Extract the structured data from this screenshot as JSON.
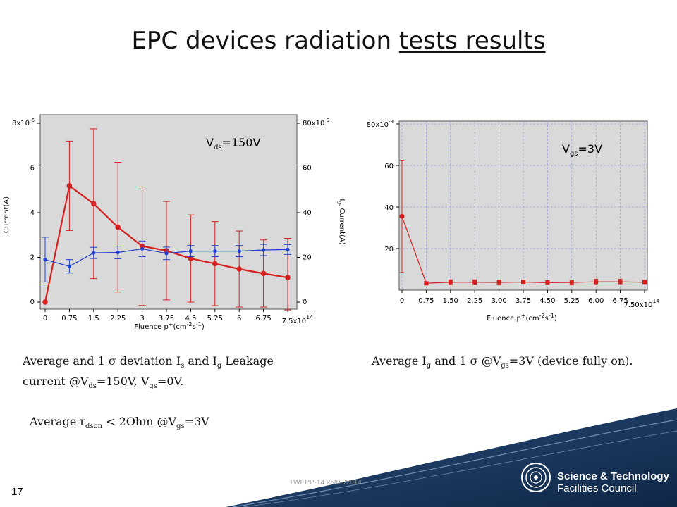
{
  "title": {
    "plain": "EPC devices radiation ",
    "underlined": "tests results"
  },
  "chart_data": [
    {
      "type": "line",
      "annotation": {
        "main": "V",
        "sub": "ds",
        "rest": "=150V"
      },
      "xlabel": "Fluence p+(cm-2s-1)",
      "x_tick_labels": [
        "0",
        "0.75",
        "1.5",
        "2.25",
        "3",
        "3.75",
        "4.5",
        "5.25",
        "6",
        "6.75",
        "7.5x10"
      ],
      "x_exponent": "14",
      "x": [
        0,
        0.75,
        1.5,
        2.25,
        3,
        3.75,
        4.5,
        5.25,
        6,
        6.75,
        7.5
      ],
      "y_left_label": "Current(A)",
      "y_left_tick_labels": [
        "0",
        "2",
        "4",
        "6",
        "8x10"
      ],
      "y_left_exponent": "-6",
      "ylim_left": [
        0,
        8e-06
      ],
      "y_right_label": "Current(A)",
      "y_right_label_sub": "gs",
      "y_right_label_prefix": "I",
      "y_right_tick_labels": [
        "0",
        "20",
        "40",
        "60",
        "80x10"
      ],
      "y_right_exponent": "-9",
      "ylim_right": [
        0,
        8e-08
      ],
      "series": [
        {
          "axis": "left",
          "color": "#d62020",
          "values": [
            0,
            5.2,
            4.4,
            3.35,
            2.5,
            2.3,
            1.95,
            1.72,
            1.48,
            1.28,
            1.1
          ],
          "err": [
            0,
            2.0,
            3.35,
            2.9,
            2.65,
            2.2,
            1.95,
            1.88,
            1.7,
            1.5,
            1.75
          ]
        },
        {
          "axis": "left",
          "color": "#2040d0",
          "values": [
            1.9,
            1.6,
            2.2,
            2.22,
            2.38,
            2.18,
            2.28,
            2.28,
            2.28,
            2.33,
            2.35
          ],
          "err": [
            1.0,
            0.3,
            0.25,
            0.28,
            0.35,
            0.28,
            0.25,
            0.25,
            0.25,
            0.25,
            0.22
          ]
        }
      ]
    },
    {
      "type": "line",
      "annotation": {
        "main": "V",
        "sub": "gs",
        "rest": "=3V"
      },
      "xlabel": "Fluence p+(cm-2s-1)",
      "x_tick_labels": [
        "0",
        "0.75",
        "1.50",
        "2.25",
        "3.00",
        "3.75",
        "4.50",
        "5.25",
        "6.00",
        "6.75",
        "7.50x10"
      ],
      "x_exponent": "14",
      "x": [
        0,
        0.75,
        1.5,
        2.25,
        3,
        3.75,
        4.5,
        5.25,
        6,
        6.75,
        7.5
      ],
      "y_tick_labels": [
        "20",
        "40",
        "60",
        "80x10"
      ],
      "y_exponent": "-9",
      "ylim": [
        0,
        8e-08
      ],
      "series": [
        {
          "color": "#d62020",
          "values": [
            35.5,
            3.3,
            3.8,
            3.8,
            3.7,
            3.9,
            3.6,
            3.7,
            4.0,
            4.0,
            3.8
          ],
          "err": [
            27,
            0.5,
            1.2,
            1.2,
            1.2,
            1.0,
            1.0,
            1.2,
            1.3,
            1.3,
            1.0
          ]
        }
      ]
    }
  ],
  "captions": {
    "left": {
      "p1": "Average and 1 σ deviation  I",
      "s1": "s",
      "p2": " and I",
      "s2": "g",
      "p3": " Leakage",
      "p4": "current @V",
      "s3": "ds",
      "p5": "=150V, V",
      "s4": "gs",
      "p6": "=0V."
    },
    "right": {
      "p1": "Average I",
      "s1": "g",
      "p2": " and 1 σ @V",
      "s2": "gs",
      "p3": "=3V (device fully on)."
    },
    "rdson": {
      "p1": "Average r",
      "s1": "dson",
      "p2": " < 2Ohm @V",
      "s2": "gs",
      "p3": "=3V"
    }
  },
  "footer": "TWEPP-14 25/09/2014",
  "slide_number": "17",
  "logo": {
    "line1": "Science & Technology",
    "line2": "Facilities Council"
  }
}
